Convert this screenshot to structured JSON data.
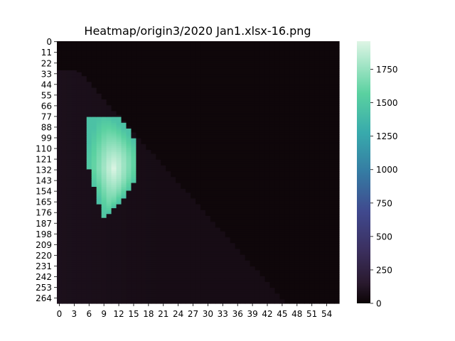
{
  "chart_data": {
    "type": "heatmap",
    "title": "Heatmap/origin3/2020 Jan1.xlsx-16.png",
    "xlabel": "",
    "ylabel": "",
    "n_cols": 57,
    "n_rows": 270,
    "x_tick_labels": [
      "0",
      "3",
      "6",
      "9",
      "12",
      "15",
      "18",
      "21",
      "24",
      "27",
      "30",
      "33",
      "36",
      "39",
      "42",
      "45",
      "48",
      "51",
      "54"
    ],
    "y_tick_labels": [
      "0",
      "11",
      "22",
      "33",
      "44",
      "55",
      "66",
      "77",
      "88",
      "99",
      "110",
      "121",
      "132",
      "143",
      "154",
      "165",
      "176",
      "187",
      "198",
      "209",
      "220",
      "231",
      "242",
      "253",
      "264"
    ],
    "colorbar": {
      "min": 0,
      "max": 1960,
      "ticks": [
        "0",
        "250",
        "500",
        "750",
        "1000",
        "1250",
        "1500",
        "1750"
      ],
      "colormap": "mako"
    },
    "regions": [
      {
        "description": "lower-left triangle of low values bounded by diagonal",
        "col_range": [
          0,
          42
        ],
        "row_range": [
          33,
          270
        ],
        "value": 60
      },
      {
        "description": "high-value blob",
        "col_range": [
          6,
          16
        ],
        "row_range": [
          75,
          184
        ],
        "peak_value": 1950,
        "edge_value": 1450
      }
    ],
    "background_value": 20
  }
}
